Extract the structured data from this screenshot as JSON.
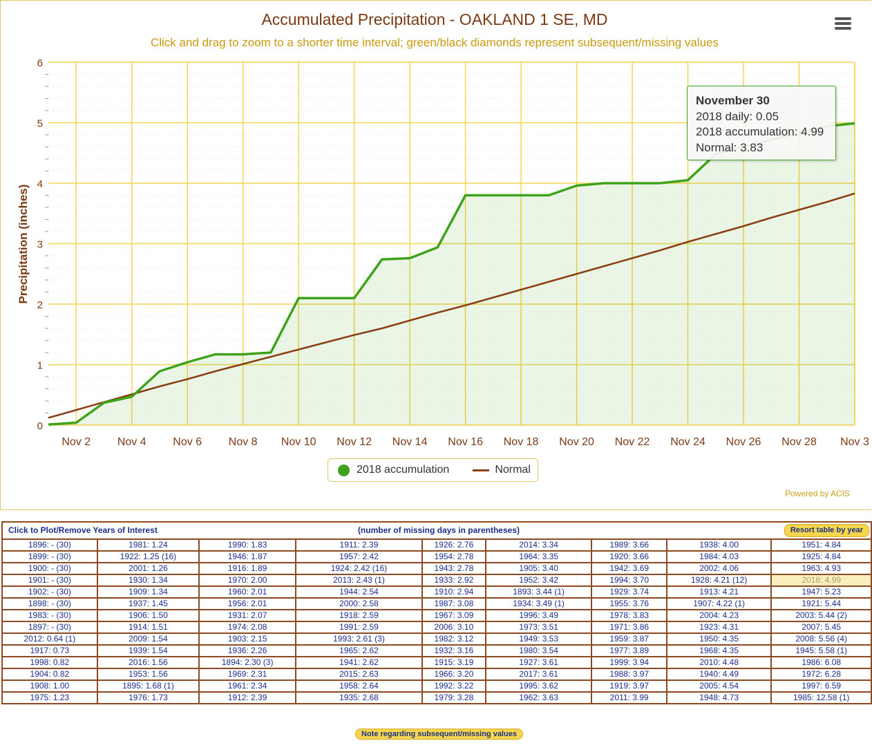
{
  "title": "Accumulated Precipitation - OAKLAND 1 SE, MD",
  "subtitle": "Click and drag to zoom to a shorter time interval; green/black diamonds represent subsequent/missing values",
  "menu_icon": "hamburger-menu-icon",
  "credits": "Powered by ACIS",
  "tooltip": {
    "date": "November 30",
    "daily": "2018 daily: 0.05",
    "accum": "2018 accumulation: 4.99",
    "normal": "Normal: 3.83"
  },
  "legend": {
    "accum": "2018 accumulation",
    "normal": "Normal"
  },
  "colors": {
    "accum": "#3fa21b",
    "normal": "#8b3e12",
    "grid": "#f3d54e"
  },
  "chart_data": {
    "type": "area",
    "title": "Accumulated Precipitation - OAKLAND 1 SE, MD",
    "ylabel": "Precipitation (inches)",
    "xlabel": "",
    "ylim": [
      0,
      6
    ],
    "yticks": [
      "0",
      "1",
      "2",
      "3",
      "4",
      "5",
      "6"
    ],
    "xticks": [
      "Nov 2",
      "Nov 4",
      "Nov 6",
      "Nov 8",
      "Nov 10",
      "Nov 12",
      "Nov 14",
      "Nov 16",
      "Nov 18",
      "Nov 20",
      "Nov 22",
      "Nov 24",
      "Nov 26",
      "Nov 28",
      "Nov 3"
    ],
    "x": [
      1,
      2,
      3,
      4,
      5,
      6,
      7,
      8,
      9,
      10,
      11,
      12,
      13,
      14,
      15,
      16,
      17,
      18,
      19,
      20,
      21,
      22,
      23,
      24,
      25,
      26,
      27,
      28,
      29,
      30
    ],
    "series": [
      {
        "name": "2018 accumulation",
        "type": "area",
        "values": [
          0.01,
          0.04,
          0.37,
          0.47,
          0.89,
          1.04,
          1.17,
          1.17,
          1.2,
          2.1,
          2.1,
          2.1,
          2.74,
          2.76,
          2.94,
          3.8,
          3.8,
          3.8,
          3.8,
          3.96,
          4.0,
          4.0,
          4.0,
          4.05,
          4.48,
          4.6,
          4.72,
          4.83,
          4.94,
          4.99
        ]
      },
      {
        "name": "Normal",
        "type": "line",
        "values": [
          0.12,
          0.25,
          0.38,
          0.51,
          0.64,
          0.76,
          0.89,
          1.01,
          1.13,
          1.25,
          1.37,
          1.49,
          1.6,
          1.73,
          1.86,
          1.98,
          2.11,
          2.24,
          2.37,
          2.5,
          2.63,
          2.76,
          2.89,
          3.03,
          3.16,
          3.29,
          3.43,
          3.56,
          3.69,
          3.83
        ]
      }
    ],
    "grid": true,
    "legend_position": "bottom-center"
  },
  "table": {
    "header_left": "Click to Plot/Remove Years of Interest",
    "header_mid": "(number of missing days in parentheses)",
    "resort_label": "Resort table by year",
    "highlight": "2018: 4.99",
    "rows": [
      [
        "1896: - (30)",
        "1981: 1.24",
        "1990: 1.83",
        "1911: 2.39",
        "1926: 2.76",
        "2014: 3.34",
        "1989: 3.66",
        "1938: 4.00",
        "1951: 4.84"
      ],
      [
        "1899: - (30)",
        "1922: 1.25 (16)",
        "1946: 1.87",
        "1957: 2.42",
        "1954: 2.78",
        "1964: 3.35",
        "1920: 3.66",
        "1984: 4.03",
        "1925: 4.84"
      ],
      [
        "1900: - (30)",
        "2001: 1.26",
        "1916: 1.89",
        "1924: 2.42 (16)",
        "1943: 2.78",
        "1905: 3.40",
        "1942: 3.69",
        "2002: 4.06",
        "1963: 4.93"
      ],
      [
        "1901: - (30)",
        "1930: 1.34",
        "1970: 2.00",
        "2013: 2.43 (1)",
        "1933: 2.92",
        "1952: 3.42",
        "1994: 3.70",
        "1928: 4.21 (12)",
        "2018: 4.99"
      ],
      [
        "1902: - (30)",
        "1909: 1.34",
        "1960: 2.01",
        "1944: 2.54",
        "1910: 2.94",
        "1893: 3.44 (1)",
        "1929: 3.74",
        "1913: 4.21",
        "1947: 5.23"
      ],
      [
        "1898: - (30)",
        "1937: 1.45",
        "1956: 2.01",
        "2000: 2.58",
        "1987: 3.08",
        "1934: 3.49 (1)",
        "1955: 3.76",
        "1907: 4.22 (1)",
        "1921: 5.44"
      ],
      [
        "1983: - (30)",
        "1906: 1.50",
        "1931: 2.07",
        "1918: 2.59",
        "1967: 3.09",
        "1996: 3.49",
        "1978: 3.83",
        "2004: 4.23",
        "2003: 5.44 (2)"
      ],
      [
        "1897: - (30)",
        "1914: 1.51",
        "1974: 2.08",
        "1991: 2.59",
        "2006: 3.10",
        "1973: 3.51",
        "1971: 3.86",
        "1923: 4.31",
        "2007: 5.45"
      ],
      [
        "2012: 0.64 (1)",
        "2009: 1.54",
        "1903: 2.15",
        "1993: 2.61 (3)",
        "1982: 3.12",
        "1949: 3.53",
        "1959: 3.87",
        "1950: 4.35",
        "2008: 5.56 (4)"
      ],
      [
        "1917: 0.73",
        "1939: 1.54",
        "1936: 2.26",
        "1965: 2.62",
        "1932: 3.16",
        "1980: 3.54",
        "1977: 3.89",
        "1968: 4.35",
        "1945: 5.58 (1)"
      ],
      [
        "1998: 0.82",
        "2016: 1.56",
        "1894: 2.30 (3)",
        "1941: 2.62",
        "1915: 3.19",
        "1927: 3.61",
        "1999: 3.94",
        "2010: 4.48",
        "1986: 6.08"
      ],
      [
        "1904: 0.82",
        "1953: 1.56",
        "1969: 2.31",
        "2015: 2.63",
        "1966: 3.20",
        "2017: 3.61",
        "1988: 3.97",
        "1940: 4.49",
        "1972: 6.28"
      ],
      [
        "1908: 1.00",
        "1895: 1.68 (1)",
        "1961: 2.34",
        "1958: 2.64",
        "1992: 3.22",
        "1995: 3.62",
        "1919: 3.97",
        "2005: 4.54",
        "1997: 6.59"
      ],
      [
        "1975: 1.23",
        "1976: 1.73",
        "1912: 2.39",
        "1935: 2.68",
        "1979: 3.28",
        "1962: 3.63",
        "2011: 3.99",
        "1948: 4.73",
        "1985: 12.58 (1)"
      ]
    ],
    "note_label": "Note regarding subsequent/missing values"
  }
}
